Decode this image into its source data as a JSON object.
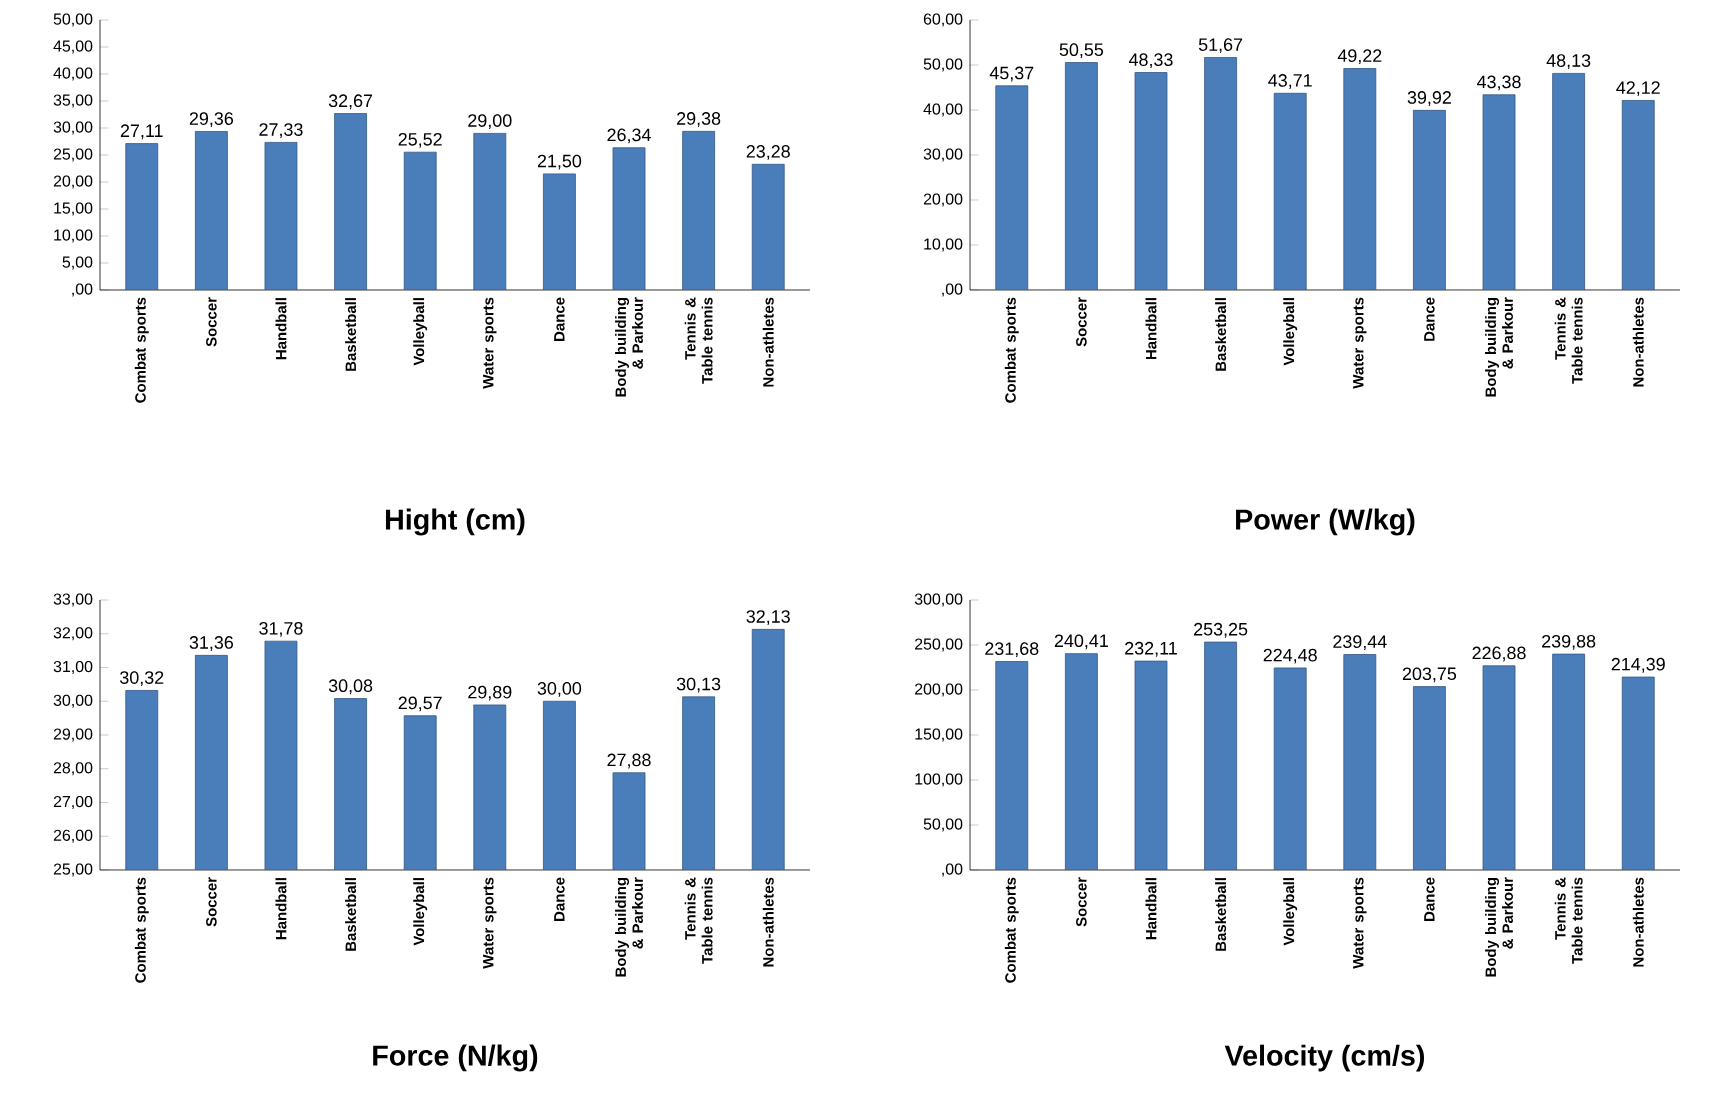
{
  "chart_data": [
    {
      "type": "bar",
      "title": "Hight (cm)",
      "categories": [
        "Combat sports",
        "Soccer",
        "Handball",
        "Basketball",
        "Volleyball",
        "Water sports",
        "Dance",
        "Body building & Parkour",
        "Tennis & Table tennis",
        "Non-athletes"
      ],
      "values": [
        27.11,
        29.36,
        27.33,
        32.67,
        25.52,
        29.0,
        21.5,
        26.34,
        29.38,
        23.28
      ],
      "value_labels": [
        "27,11",
        "29,36",
        "27,33",
        "32,67",
        "25,52",
        "29,00",
        "21,50",
        "26,34",
        "29,38",
        "23,28"
      ],
      "color": "#4a7ebb",
      "ylim": [
        0,
        50
      ],
      "yticks": [
        {
          "value": 0,
          "label": ",00"
        },
        {
          "value": 5,
          "label": "5,00"
        },
        {
          "value": 10,
          "label": "10,00"
        },
        {
          "value": 15,
          "label": "15,00"
        },
        {
          "value": 20,
          "label": "20,00"
        },
        {
          "value": 25,
          "label": "25,00"
        },
        {
          "value": 30,
          "label": "30,00"
        },
        {
          "value": 35,
          "label": "35,00"
        },
        {
          "value": 40,
          "label": "40,00"
        },
        {
          "value": 45,
          "label": "45,00"
        },
        {
          "value": 50,
          "label": "50,00"
        }
      ]
    },
    {
      "type": "bar",
      "title": "Power (W/kg)",
      "categories": [
        "Combat sports",
        "Soccer",
        "Handball",
        "Basketball",
        "Volleyball",
        "Water sports",
        "Dance",
        "Body building & Parkour",
        "Tennis & Table tennis",
        "Non-athletes"
      ],
      "values": [
        45.37,
        50.55,
        48.33,
        51.67,
        43.71,
        49.22,
        39.92,
        43.38,
        48.13,
        42.12
      ],
      "value_labels": [
        "45,37",
        "50,55",
        "48,33",
        "51,67",
        "43,71",
        "49,22",
        "39,92",
        "43,38",
        "48,13",
        "42,12"
      ],
      "color": "#4a7ebb",
      "ylim": [
        0,
        60
      ],
      "yticks": [
        {
          "value": 0,
          "label": ",00"
        },
        {
          "value": 10,
          "label": "10,00"
        },
        {
          "value": 20,
          "label": "20,00"
        },
        {
          "value": 30,
          "label": "30,00"
        },
        {
          "value": 40,
          "label": "40,00"
        },
        {
          "value": 50,
          "label": "50,00"
        },
        {
          "value": 60,
          "label": "60,00"
        }
      ]
    },
    {
      "type": "bar",
      "title": "Force (N/kg)",
      "categories": [
        "Combat sports",
        "Soccer",
        "Handball",
        "Basketball",
        "Volleyball",
        "Water sports",
        "Dance",
        "Body building & Parkour",
        "Tennis & Table tennis",
        "Non-athletes"
      ],
      "values": [
        30.32,
        31.36,
        31.78,
        30.08,
        29.57,
        29.89,
        30.0,
        27.88,
        30.13,
        32.13
      ],
      "value_labels": [
        "30,32",
        "31,36",
        "31,78",
        "30,08",
        "29,57",
        "29,89",
        "30,00",
        "27,88",
        "30,13",
        "32,13"
      ],
      "color": "#4a7ebb",
      "ylim": [
        25,
        33
      ],
      "yticks": [
        {
          "value": 25,
          "label": "25,00"
        },
        {
          "value": 26,
          "label": "26,00"
        },
        {
          "value": 27,
          "label": "27,00"
        },
        {
          "value": 28,
          "label": "28,00"
        },
        {
          "value": 29,
          "label": "29,00"
        },
        {
          "value": 30,
          "label": "30,00"
        },
        {
          "value": 31,
          "label": "31,00"
        },
        {
          "value": 32,
          "label": "32,00"
        },
        {
          "value": 33,
          "label": "33,00"
        }
      ]
    },
    {
      "type": "bar",
      "title": "Velocity (cm/s)",
      "categories": [
        "Combat sports",
        "Soccer",
        "Handball",
        "Basketball",
        "Volleyball",
        "Water sports",
        "Dance",
        "Body building & Parkour",
        "Tennis & Table tennis",
        "Non-athletes"
      ],
      "values": [
        231.68,
        240.41,
        232.11,
        253.25,
        224.48,
        239.44,
        203.75,
        226.88,
        239.88,
        214.39
      ],
      "value_labels": [
        "231,68",
        "240,41",
        "232,11",
        "253,25",
        "224,48",
        "239,44",
        "203,75",
        "226,88",
        "239,88",
        "214,39"
      ],
      "color": "#4a7ebb",
      "ylim": [
        0,
        300
      ],
      "yticks": [
        {
          "value": 0,
          "label": ",00"
        },
        {
          "value": 50,
          "label": "50,00"
        },
        {
          "value": 100,
          "label": "100,00"
        },
        {
          "value": 150,
          "label": "150,00"
        },
        {
          "value": 200,
          "label": "200,00"
        },
        {
          "value": 250,
          "label": "250,00"
        },
        {
          "value": 300,
          "label": "300,00"
        }
      ]
    }
  ]
}
